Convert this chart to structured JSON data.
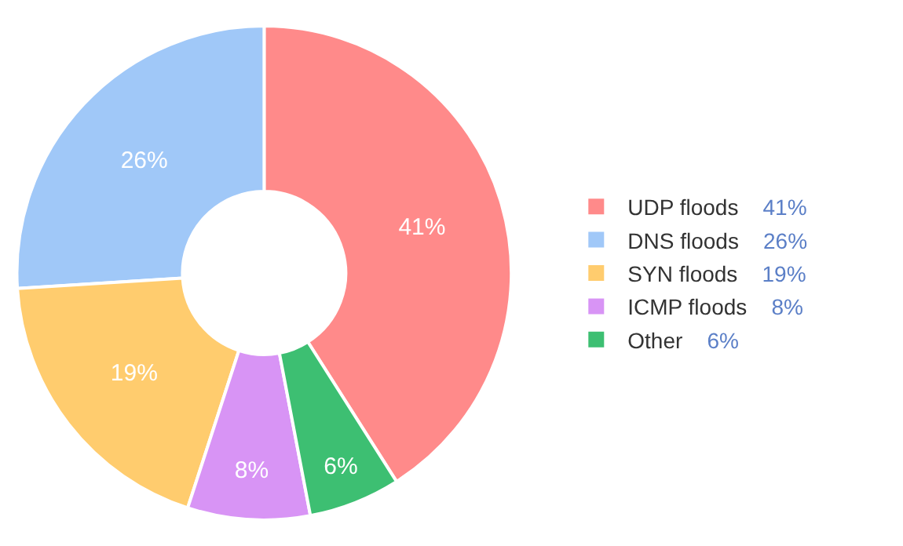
{
  "chart_data": {
    "type": "donut",
    "categories": [
      "UDP floods",
      "DNS floods",
      "SYN floods",
      "ICMP floods",
      "Other"
    ],
    "values": [
      41,
      26,
      19,
      8,
      6
    ],
    "value_labels": [
      "41%",
      "26%",
      "19%",
      "8%",
      "6%"
    ],
    "colors": [
      "#ff8a8a",
      "#a0c8f8",
      "#ffcc6e",
      "#d894f5",
      "#3dbf72"
    ],
    "data_labels": true,
    "legend": "right"
  }
}
